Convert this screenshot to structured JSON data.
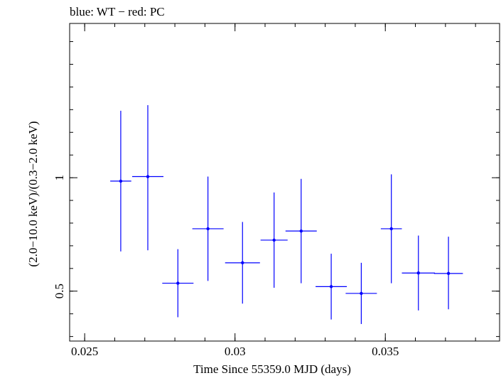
{
  "chart_data": {
    "type": "scatter",
    "title": "blue: WT − red: PC",
    "xlabel": "Time Since 55359.0 MJD (days)",
    "ylabel": "(2.0−10.0 keV)/(0.3−2.0 keV)",
    "xlim": [
      0.0245,
      0.0388
    ],
    "ylim": [
      0.28,
      1.68
    ],
    "x_ticks": [
      {
        "value": 0.025,
        "label": "0.025"
      },
      {
        "value": 0.03,
        "label": "0.03"
      },
      {
        "value": 0.035,
        "label": "0.035"
      }
    ],
    "y_ticks": [
      {
        "value": 0.5,
        "label": "0.5"
      },
      {
        "value": 1.0,
        "label": "1"
      }
    ],
    "x_minor_step": 0.001,
    "y_minor_step": 0.1,
    "grid": false,
    "series": [
      {
        "name": "WT",
        "color": "#0000ff",
        "points": [
          {
            "x": 0.0262,
            "xerr": 0.00035,
            "y": 0.985,
            "ylo": 0.675,
            "yhi": 1.295
          },
          {
            "x": 0.0271,
            "xerr": 0.00052,
            "y": 1.005,
            "ylo": 0.68,
            "yhi": 1.32
          },
          {
            "x": 0.0281,
            "xerr": 0.00052,
            "y": 0.535,
            "ylo": 0.385,
            "yhi": 0.685
          },
          {
            "x": 0.0291,
            "xerr": 0.00052,
            "y": 0.775,
            "ylo": 0.545,
            "yhi": 1.005
          },
          {
            "x": 0.03025,
            "xerr": 0.00058,
            "y": 0.625,
            "ylo": 0.445,
            "yhi": 0.805
          },
          {
            "x": 0.0313,
            "xerr": 0.00045,
            "y": 0.725,
            "ylo": 0.515,
            "yhi": 0.935
          },
          {
            "x": 0.0322,
            "xerr": 0.00052,
            "y": 0.765,
            "ylo": 0.535,
            "yhi": 0.995
          },
          {
            "x": 0.0332,
            "xerr": 0.00052,
            "y": 0.52,
            "ylo": 0.375,
            "yhi": 0.665
          },
          {
            "x": 0.0342,
            "xerr": 0.00052,
            "y": 0.49,
            "ylo": 0.355,
            "yhi": 0.625
          },
          {
            "x": 0.0352,
            "xerr": 0.00035,
            "y": 0.775,
            "ylo": 0.535,
            "yhi": 1.015
          },
          {
            "x": 0.0361,
            "xerr": 0.00055,
            "y": 0.58,
            "ylo": 0.415,
            "yhi": 0.745
          },
          {
            "x": 0.0371,
            "xerr": 0.00048,
            "y": 0.578,
            "ylo": 0.42,
            "yhi": 0.74
          }
        ]
      }
    ]
  }
}
